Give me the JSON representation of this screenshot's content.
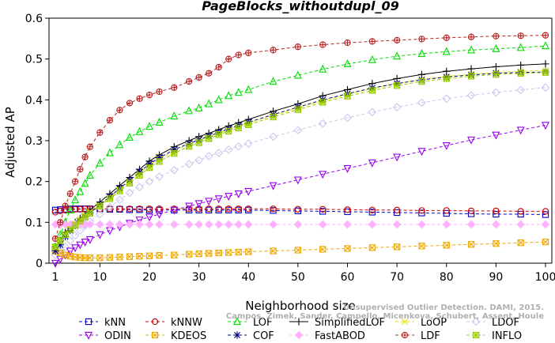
{
  "chart_data": {
    "type": "line",
    "title": "PageBlocks_withoutdupl_09",
    "xlabel": "Neighborhood size",
    "ylabel": "Adjusted AP",
    "xlim": [
      1,
      100
    ],
    "ylim": [
      0,
      0.6
    ],
    "xticks": [
      1,
      10,
      20,
      30,
      40,
      50,
      60,
      70,
      80,
      90,
      100
    ],
    "yticks": [
      0,
      0.1,
      0.2,
      0.3,
      0.4,
      0.5,
      0.6
    ],
    "grid": false,
    "legend_position": "bottom",
    "watermark": [
      "Unsupervised Outlier Detection. DAMI, 2015.",
      "Campos, Zimek, Sander, Campello, Micenkova, Schubert, Assent, Houle"
    ],
    "x": [
      1,
      2,
      3,
      4,
      5,
      6,
      7,
      8,
      10,
      12,
      14,
      16,
      18,
      20,
      22,
      25,
      28,
      30,
      32,
      34,
      36,
      38,
      40,
      45,
      50,
      55,
      60,
      65,
      70,
      75,
      80,
      85,
      90,
      95,
      100
    ],
    "series": [
      {
        "name": "kNN",
        "color": "#0000cc",
        "marker": "square",
        "style": "dashed",
        "values": [
          0.13,
          0.131,
          0.132,
          0.133,
          0.133,
          0.133,
          0.133,
          0.133,
          0.133,
          0.132,
          0.132,
          0.131,
          0.131,
          0.13,
          0.13,
          0.13,
          0.13,
          0.13,
          0.13,
          0.13,
          0.13,
          0.13,
          0.13,
          0.129,
          0.128,
          0.127,
          0.126,
          0.125,
          0.124,
          0.123,
          0.122,
          0.121,
          0.12,
          0.12,
          0.119
        ]
      },
      {
        "name": "kNNW",
        "color": "#cc0000",
        "marker": "circle",
        "style": "dashed",
        "values": [
          0.125,
          0.128,
          0.13,
          0.131,
          0.132,
          0.132,
          0.133,
          0.133,
          0.133,
          0.133,
          0.133,
          0.133,
          0.133,
          0.133,
          0.133,
          0.133,
          0.133,
          0.133,
          0.133,
          0.133,
          0.133,
          0.133,
          0.133,
          0.133,
          0.132,
          0.132,
          0.131,
          0.13,
          0.13,
          0.129,
          0.129,
          0.128,
          0.128,
          0.127,
          0.127
        ]
      },
      {
        "name": "LOF",
        "color": "#00dd00",
        "marker": "triangle-up",
        "style": "dashed",
        "values": [
          0.04,
          0.07,
          0.1,
          0.13,
          0.155,
          0.175,
          0.195,
          0.215,
          0.245,
          0.27,
          0.29,
          0.308,
          0.322,
          0.335,
          0.345,
          0.36,
          0.373,
          0.38,
          0.39,
          0.4,
          0.41,
          0.418,
          0.425,
          0.445,
          0.46,
          0.475,
          0.488,
          0.498,
          0.507,
          0.513,
          0.518,
          0.522,
          0.525,
          0.528,
          0.532
        ]
      },
      {
        "name": "SimplifiedLOF",
        "color": "#000000",
        "marker": "plus",
        "style": "solid",
        "values": [
          0.04,
          0.055,
          0.075,
          0.09,
          0.1,
          0.11,
          0.12,
          0.13,
          0.15,
          0.17,
          0.19,
          0.21,
          0.23,
          0.25,
          0.265,
          0.285,
          0.3,
          0.31,
          0.318,
          0.327,
          0.336,
          0.344,
          0.352,
          0.372,
          0.39,
          0.41,
          0.425,
          0.44,
          0.452,
          0.462,
          0.47,
          0.476,
          0.481,
          0.485,
          0.488
        ]
      },
      {
        "name": "LoOP",
        "color": "#e6e600",
        "marker": "x",
        "style": "dashed",
        "values": [
          0.04,
          0.055,
          0.07,
          0.085,
          0.097,
          0.108,
          0.118,
          0.126,
          0.142,
          0.16,
          0.18,
          0.2,
          0.22,
          0.24,
          0.255,
          0.275,
          0.292,
          0.3,
          0.31,
          0.32,
          0.328,
          0.336,
          0.343,
          0.362,
          0.38,
          0.398,
          0.413,
          0.428,
          0.44,
          0.45,
          0.457,
          0.463,
          0.467,
          0.47,
          0.472
        ]
      },
      {
        "name": "LDOF",
        "color": "#c8c8f0",
        "marker": "diamond",
        "style": "dashed",
        "values": [
          0.02,
          0.03,
          0.04,
          0.055,
          0.068,
          0.08,
          0.092,
          0.102,
          0.12,
          0.138,
          0.155,
          0.172,
          0.186,
          0.2,
          0.212,
          0.228,
          0.243,
          0.252,
          0.262,
          0.27,
          0.278,
          0.286,
          0.293,
          0.31,
          0.326,
          0.342,
          0.356,
          0.37,
          0.382,
          0.393,
          0.403,
          0.411,
          0.418,
          0.424,
          0.43
        ]
      },
      {
        "name": "ODIN",
        "color": "#9900ee",
        "marker": "triangle-down",
        "style": "dashed",
        "values": [
          0.0,
          0.01,
          0.02,
          0.03,
          0.038,
          0.045,
          0.052,
          0.058,
          0.07,
          0.08,
          0.089,
          0.098,
          0.106,
          0.113,
          0.12,
          0.13,
          0.14,
          0.146,
          0.152,
          0.158,
          0.164,
          0.17,
          0.176,
          0.19,
          0.204,
          0.218,
          0.232,
          0.246,
          0.26,
          0.274,
          0.288,
          0.302,
          0.314,
          0.326,
          0.338
        ]
      },
      {
        "name": "KDEOS",
        "color": "#f0a800",
        "marker": "square-x",
        "style": "dashed",
        "values": [
          0.03,
          0.025,
          0.02,
          0.017,
          0.015,
          0.014,
          0.013,
          0.013,
          0.013,
          0.014,
          0.015,
          0.016,
          0.017,
          0.018,
          0.019,
          0.02,
          0.022,
          0.023,
          0.024,
          0.025,
          0.026,
          0.027,
          0.028,
          0.03,
          0.032,
          0.034,
          0.036,
          0.038,
          0.04,
          0.042,
          0.044,
          0.046,
          0.048,
          0.05,
          0.052
        ]
      },
      {
        "name": "COF",
        "color": "#000080",
        "marker": "asterisk",
        "style": "dashed",
        "values": [
          0.03,
          0.045,
          0.065,
          0.08,
          0.092,
          0.103,
          0.113,
          0.123,
          0.143,
          0.163,
          0.183,
          0.203,
          0.223,
          0.243,
          0.258,
          0.278,
          0.293,
          0.302,
          0.311,
          0.32,
          0.329,
          0.337,
          0.345,
          0.364,
          0.382,
          0.4,
          0.415,
          0.429,
          0.44,
          0.449,
          0.456,
          0.461,
          0.465,
          0.467,
          0.468
        ]
      },
      {
        "name": "FastABOD",
        "color": "#ffb0ff",
        "marker": "diamond-filled",
        "style": "dashed",
        "values": [
          0.095,
          0.095,
          0.095,
          0.095,
          0.095,
          0.095,
          0.095,
          0.095,
          0.095,
          0.095,
          0.095,
          0.095,
          0.095,
          0.095,
          0.095,
          0.095,
          0.095,
          0.095,
          0.095,
          0.095,
          0.095,
          0.095,
          0.095,
          0.095,
          0.095,
          0.095,
          0.095,
          0.095,
          0.095,
          0.095,
          0.095,
          0.095,
          0.095,
          0.095,
          0.095
        ]
      },
      {
        "name": "LDF",
        "color": "#bb2222",
        "marker": "circle-plus",
        "style": "dashed",
        "values": [
          0.06,
          0.1,
          0.14,
          0.17,
          0.2,
          0.23,
          0.26,
          0.285,
          0.32,
          0.35,
          0.375,
          0.392,
          0.403,
          0.412,
          0.42,
          0.43,
          0.445,
          0.455,
          0.465,
          0.48,
          0.5,
          0.51,
          0.515,
          0.522,
          0.53,
          0.535,
          0.54,
          0.543,
          0.546,
          0.549,
          0.552,
          0.554,
          0.556,
          0.557,
          0.558
        ]
      },
      {
        "name": "INFLO",
        "color": "#99cc00",
        "marker": "square-star",
        "style": "dashed",
        "values": [
          0.04,
          0.055,
          0.07,
          0.082,
          0.093,
          0.103,
          0.113,
          0.122,
          0.14,
          0.158,
          0.177,
          0.196,
          0.215,
          0.234,
          0.249,
          0.269,
          0.286,
          0.295,
          0.305,
          0.315,
          0.323,
          0.331,
          0.339,
          0.358,
          0.376,
          0.394,
          0.409,
          0.423,
          0.435,
          0.445,
          0.452,
          0.458,
          0.462,
          0.465,
          0.467
        ]
      }
    ],
    "legend_rows": [
      [
        "kNN",
        "kNNW",
        "LOF",
        "SimplifiedLOF",
        "LoOP",
        "LDOF"
      ],
      [
        "ODIN",
        "KDEOS",
        "COF",
        "FastABOD",
        "LDF",
        "INFLO"
      ]
    ]
  }
}
